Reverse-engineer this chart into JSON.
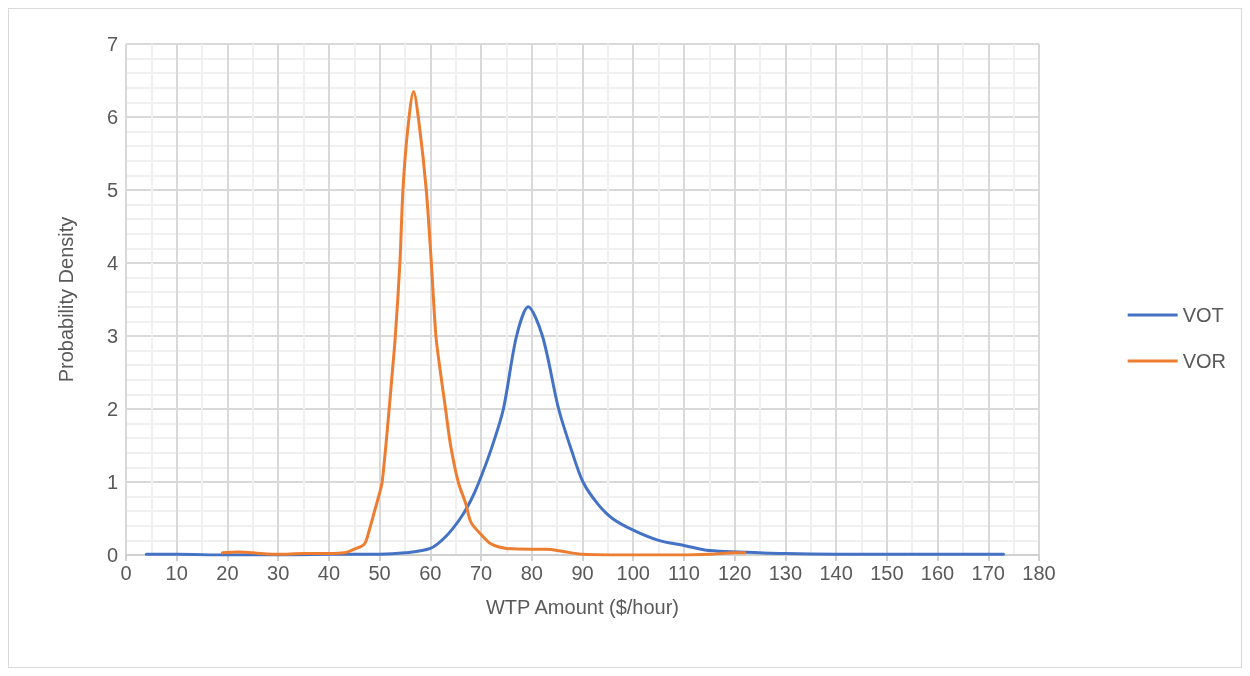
{
  "chart_data": {
    "type": "line",
    "xlabel": "WTP Amount ($/hour)",
    "ylabel": "Probability Density",
    "xlim": [
      0,
      180
    ],
    "xticks": [
      0,
      10,
      20,
      30,
      40,
      50,
      60,
      70,
      80,
      90,
      100,
      110,
      120,
      130,
      140,
      150,
      160,
      170,
      180
    ],
    "ylim": [
      0,
      7
    ],
    "yticks": [
      0,
      1,
      2,
      3,
      4,
      5,
      6,
      7
    ],
    "grid": true,
    "legend": "right",
    "marker": "none",
    "line_style": "solid",
    "series": [
      {
        "name": "VOT",
        "color": "#4472c4",
        "x": [
          4,
          10,
          20,
          30,
          40,
          50,
          55,
          60,
          63,
          65.9,
          68,
          69.6,
          72,
          74.4,
          77,
          79.3,
          82.1,
          85.3,
          88,
          90.1,
          93,
          95.9,
          100,
          105,
          110,
          115,
          130,
          140,
          150,
          160,
          173
        ],
        "values": [
          0.01,
          0.01,
          0,
          0,
          0.01,
          0.01,
          0.03,
          0.09,
          0.25,
          0.5,
          0.75,
          1,
          1.45,
          2,
          3,
          3.4,
          3,
          2,
          1.4,
          1,
          0.7,
          0.5,
          0.34,
          0.2,
          0.13,
          0.06,
          0.02,
          0.01,
          0.01,
          0.01,
          0.01
        ]
      },
      {
        "name": "VOR",
        "color": "#ed7d31",
        "x": [
          19,
          22,
          25,
          30,
          35,
          40,
          43,
          45,
          47,
          48,
          49,
          50,
          50.5,
          51.5,
          52.5,
          53.1,
          54,
          54.6,
          55.5,
          56.7,
          57.8,
          59.2,
          60.2,
          61.1,
          62,
          63,
          64,
          65.5,
          67,
          68,
          70,
          72,
          75,
          80,
          83,
          86,
          90,
          100,
          110,
          115,
          120,
          122
        ],
        "values": [
          0.03,
          0.04,
          0.03,
          0.01,
          0.02,
          0.02,
          0.03,
          0.08,
          0.15,
          0.35,
          0.6,
          0.85,
          1,
          1.7,
          2.5,
          3,
          4,
          5,
          5.8,
          6.35,
          5.9,
          5,
          4,
          3,
          2.5,
          2,
          1.5,
          1,
          0.7,
          0.45,
          0.28,
          0.15,
          0.09,
          0.08,
          0.08,
          0.05,
          0.01,
          0,
          0,
          0.01,
          0.03,
          0.03
        ]
      }
    ]
  }
}
